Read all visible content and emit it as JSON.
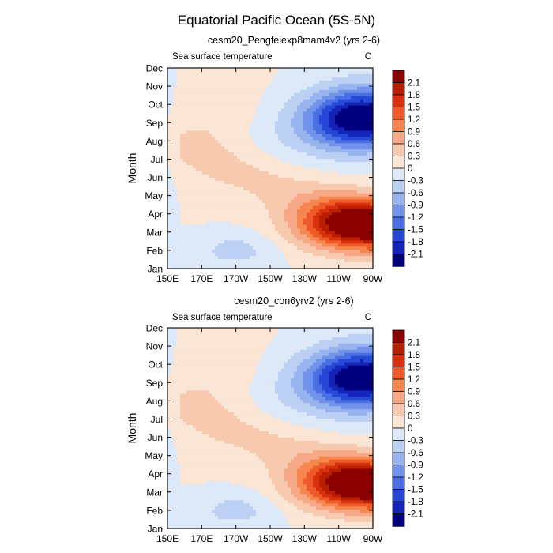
{
  "figure_title": "Equatorial Pacific Ocean (5S-5N)",
  "chart_data": [
    {
      "type": "heatmap",
      "title": "cesm20_Pengfeiexp8mam4v2 (yrs 2-6)",
      "left_label": "Sea surface temperature",
      "right_label": "C",
      "ylabel": "Month",
      "xlabel": "",
      "x_ticks": [
        "150E",
        "170E",
        "170W",
        "150W",
        "130W",
        "110W",
        "90W"
      ],
      "x_tick_values": [
        150,
        170,
        190,
        210,
        230,
        250,
        270
      ],
      "xlim": [
        150,
        270
      ],
      "y_ticks": [
        "Jan",
        "Feb",
        "Mar",
        "Apr",
        "May",
        "Jun",
        "Jul",
        "Aug",
        "Sep",
        "Oct",
        "Nov",
        "Dec"
      ],
      "ylim": [
        1,
        12
      ],
      "units": "C"
    },
    {
      "type": "heatmap",
      "title": "cesm20_con6yrv2 (yrs 2-6)",
      "left_label": "Sea surface temperature",
      "right_label": "C",
      "ylabel": "Month",
      "xlabel": "",
      "x_ticks": [
        "150E",
        "170E",
        "170W",
        "150W",
        "130W",
        "110W",
        "90W"
      ],
      "x_tick_values": [
        150,
        170,
        190,
        210,
        230,
        250,
        270
      ],
      "xlim": [
        150,
        270
      ],
      "y_ticks": [
        "Jan",
        "Feb",
        "Mar",
        "Apr",
        "May",
        "Jun",
        "Jul",
        "Aug",
        "Sep",
        "Oct",
        "Nov",
        "Dec"
      ],
      "ylim": [
        1,
        12
      ],
      "units": "C"
    }
  ],
  "colorbar": {
    "labels": [
      "2.1",
      "1.8",
      "1.5",
      "1.2",
      "0.9",
      "0.6",
      "0.3",
      "0",
      "-0.3",
      "-0.6",
      "-0.9",
      "-1.2",
      "-1.5",
      "-1.8",
      "-2.1"
    ],
    "colors": [
      "#8b0000",
      "#b81e00",
      "#d9300e",
      "#ee5a28",
      "#f5864e",
      "#f6a887",
      "#f7c9ae",
      "#fbe5d4",
      "#dde8f8",
      "#bcd0f3",
      "#98b4ee",
      "#7293ea",
      "#4a6fe4",
      "#2648d6",
      "#1424b8",
      "#00007f"
    ]
  }
}
